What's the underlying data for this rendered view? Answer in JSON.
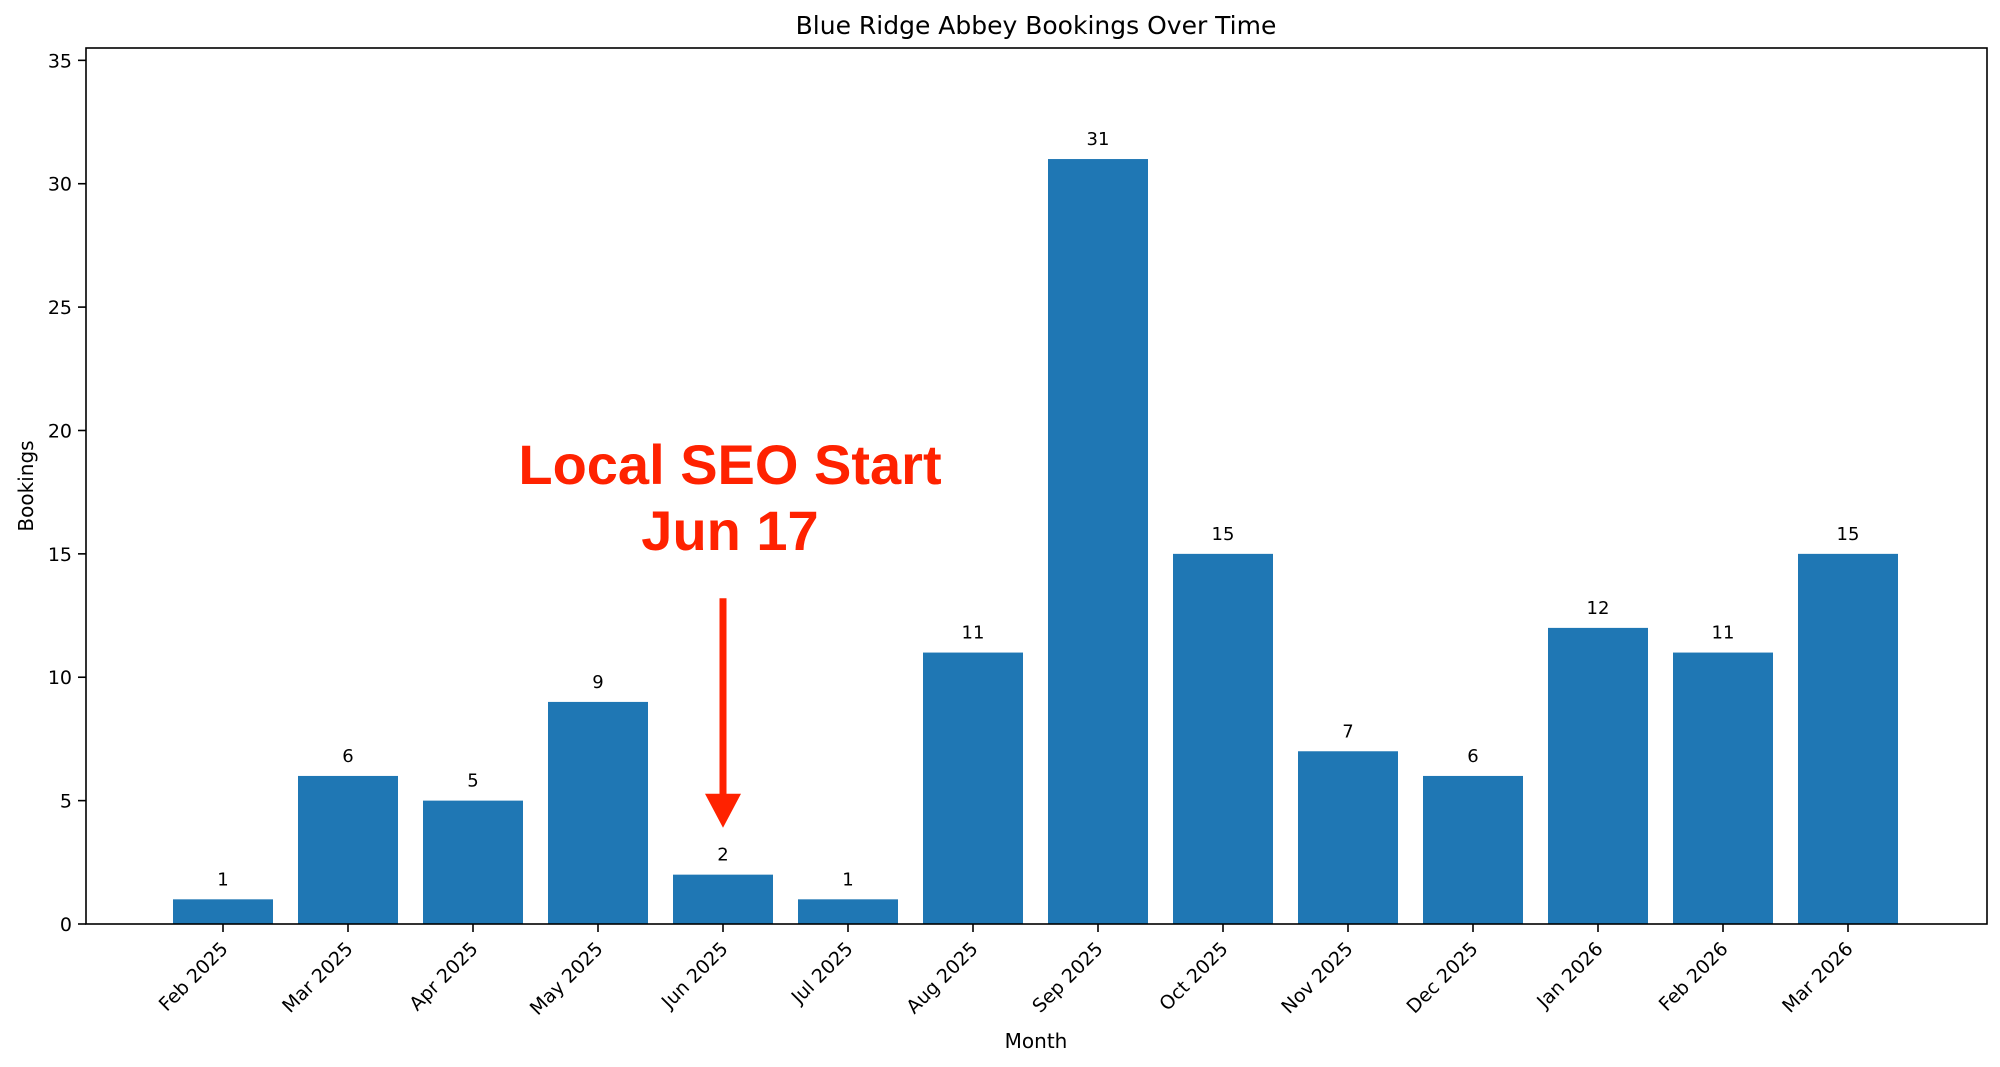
{
  "chart_data": {
    "type": "bar",
    "title": "Blue Ridge Abbey Bookings Over Time",
    "xlabel": "Month",
    "ylabel": "Bookings",
    "categories": [
      "Feb 2025",
      "Mar 2025",
      "Apr 2025",
      "May 2025",
      "Jun 2025",
      "Jul 2025",
      "Aug 2025",
      "Sep 2025",
      "Oct 2025",
      "Nov 2025",
      "Dec 2025",
      "Jan 2026",
      "Feb 2026",
      "Mar 2026"
    ],
    "values": [
      1,
      6,
      5,
      9,
      2,
      1,
      11,
      31,
      15,
      7,
      6,
      12,
      11,
      15
    ],
    "ylim": [
      0,
      35.5
    ],
    "yticks": [
      0,
      5,
      10,
      15,
      20,
      25,
      30,
      35
    ],
    "grid": false,
    "bar_color": "#1f77b4",
    "annotation": {
      "lines": [
        "Local SEO Start",
        "Jun 17"
      ],
      "category": "Jun 2025",
      "arrow_tip_value": 3.9,
      "arrow_tail_value": 13.2,
      "text_center_value": 17.3,
      "color": "#ff2200"
    }
  }
}
